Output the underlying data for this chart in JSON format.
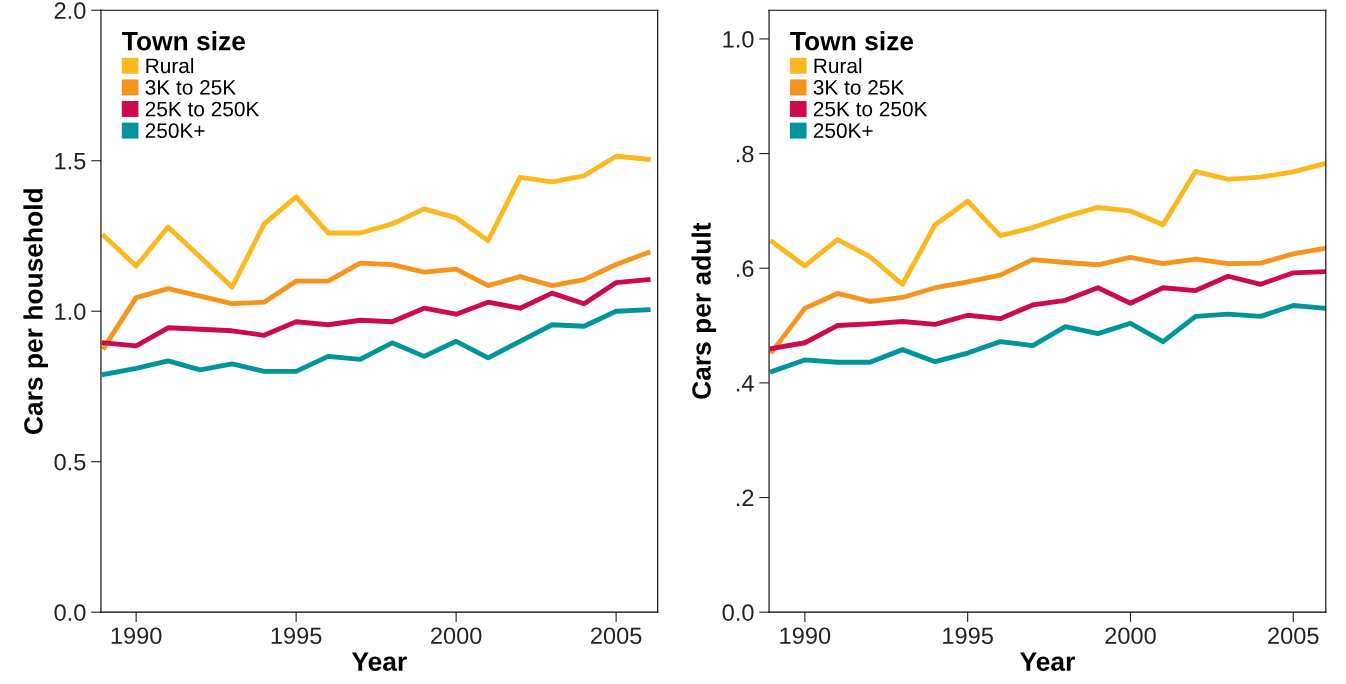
{
  "chart_data": [
    {
      "type": "line",
      "xlabel": "Year",
      "ylabel": "Cars per household",
      "legend_title": "Town size",
      "legend": "top left",
      "grid": false,
      "x": [
        1989,
        1990,
        1991,
        1992,
        1993,
        1994,
        1995,
        1996,
        1997,
        1998,
        1999,
        2000,
        2001,
        2002,
        2003,
        2004,
        2005,
        2006
      ],
      "xlim": [
        1988.9,
        2006.3
      ],
      "xticks": [
        1990,
        1995,
        2000,
        2005
      ],
      "ylim": [
        0,
        2.0
      ],
      "yticks": [
        {
          "value": 0,
          "label": "0.0"
        },
        {
          "value": 0.5,
          "label": "0.5"
        },
        {
          "value": 1.0,
          "label": "1.0"
        },
        {
          "value": 1.5,
          "label": "1.5"
        },
        {
          "value": 2.0,
          "label": "2.0"
        }
      ],
      "series": [
        {
          "name": "Rural",
          "color": "#fbb81f",
          "values": [
            1.25,
            1.15,
            1.28,
            1.18,
            1.08,
            1.29,
            1.38,
            1.26,
            1.26,
            1.29,
            1.34,
            1.31,
            1.235,
            1.445,
            1.43,
            1.45,
            1.515,
            1.505
          ]
        },
        {
          "name": "3K to 25K",
          "color": "#f7941d",
          "values": [
            0.88,
            1.045,
            1.075,
            1.05,
            1.025,
            1.03,
            1.1,
            1.1,
            1.16,
            1.155,
            1.13,
            1.14,
            1.085,
            1.115,
            1.085,
            1.105,
            1.155,
            1.195
          ]
        },
        {
          "name": "25K to 250K",
          "color": "#cc0a50",
          "values": [
            0.895,
            0.885,
            0.945,
            0.94,
            0.935,
            0.92,
            0.965,
            0.955,
            0.97,
            0.965,
            1.01,
            0.99,
            1.03,
            1.01,
            1.06,
            1.025,
            1.095,
            1.105
          ]
        },
        {
          "name": "250K+",
          "color": "#00949b",
          "values": [
            0.79,
            0.81,
            0.835,
            0.805,
            0.825,
            0.8,
            0.8,
            0.85,
            0.84,
            0.895,
            0.85,
            0.9,
            0.845,
            0.9,
            0.955,
            0.95,
            1.0,
            1.005
          ]
        }
      ]
    },
    {
      "type": "line",
      "xlabel": "Year",
      "ylabel": "Cars per adult",
      "legend_title": "Town size",
      "legend": "top left",
      "grid": false,
      "x": [
        1989,
        1990,
        1991,
        1992,
        1993,
        1994,
        1995,
        1996,
        1997,
        1998,
        1999,
        2000,
        2001,
        2002,
        2003,
        2004,
        2005,
        2006
      ],
      "xlim": [
        1988.9,
        2006.0
      ],
      "xticks": [
        1990,
        1995,
        2000,
        2005
      ],
      "ylim": [
        0,
        1.05
      ],
      "yticks": [
        {
          "value": 0,
          "label": "0.0"
        },
        {
          "value": 0.2,
          "label": ".2"
        },
        {
          "value": 0.4,
          "label": ".4"
        },
        {
          "value": 0.6,
          "label": ".6"
        },
        {
          "value": 0.8,
          "label": ".8"
        },
        {
          "value": 1.0,
          "label": "1.0"
        }
      ],
      "series": [
        {
          "name": "Rural",
          "color": "#fbb81f",
          "values": [
            0.646,
            0.604,
            0.65,
            0.62,
            0.572,
            0.676,
            0.717,
            0.657,
            0.671,
            0.69,
            0.706,
            0.7,
            0.676,
            0.769,
            0.755,
            0.759,
            0.768,
            0.783
          ]
        },
        {
          "name": "3K to 25K",
          "color": "#f7941d",
          "values": [
            0.455,
            0.53,
            0.556,
            0.542,
            0.549,
            0.566,
            0.576,
            0.588,
            0.615,
            0.61,
            0.606,
            0.619,
            0.608,
            0.616,
            0.608,
            0.609,
            0.625,
            0.635
          ]
        },
        {
          "name": "25K to 250K",
          "color": "#cc0a50",
          "values": [
            0.46,
            0.47,
            0.5,
            0.503,
            0.507,
            0.502,
            0.518,
            0.512,
            0.536,
            0.544,
            0.566,
            0.539,
            0.566,
            0.561,
            0.586,
            0.572,
            0.592,
            0.594
          ]
        },
        {
          "name": "250K+",
          "color": "#00949b",
          "values": [
            0.42,
            0.44,
            0.436,
            0.436,
            0.458,
            0.437,
            0.452,
            0.472,
            0.465,
            0.498,
            0.486,
            0.504,
            0.472,
            0.516,
            0.52,
            0.516,
            0.535,
            0.53
          ]
        }
      ]
    }
  ]
}
